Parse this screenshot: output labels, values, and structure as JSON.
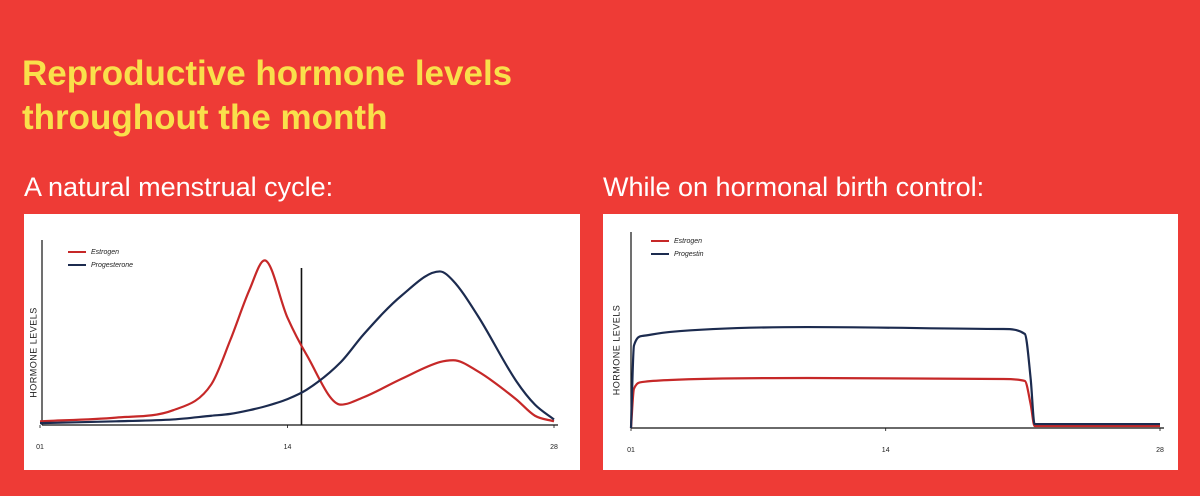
{
  "title": "Reproductive hormone levels throughout the month",
  "chart_data": [
    {
      "type": "line",
      "title": "A natural menstrual cycle:",
      "ylabel": "HORMONE LEVELS",
      "x": [
        1,
        5,
        8,
        10,
        11,
        12,
        12.8,
        14,
        15,
        16.8,
        18,
        20,
        22,
        22.7,
        24,
        26,
        27,
        28
      ],
      "series": [
        {
          "name": "Estrogen",
          "color": "#c62828",
          "values": [
            2,
            4,
            8,
            22,
            46,
            73,
            89,
            58,
            38,
            11,
            15,
            25,
            34,
            35,
            29,
            14,
            5,
            2
          ]
        },
        {
          "name": "Progesterone",
          "color": "#1c2b4f",
          "values": [
            1,
            2,
            3,
            5,
            6,
            8,
            10,
            14,
            19,
            34,
            49,
            70,
            83,
            78,
            59,
            24,
            11,
            3
          ]
        }
      ],
      "xlim": [
        1,
        28
      ],
      "xticks": [
        {
          "value": 1,
          "label": "01"
        },
        14,
        28
      ],
      "ylim": [
        0,
        100
      ],
      "vline": 14,
      "grid": false,
      "legend": "top-left"
    },
    {
      "type": "line",
      "title": "While on hormonal birth control:",
      "ylabel": "HORMONE LEVELS",
      "x": [
        1,
        1.15,
        1.6,
        3,
        10,
        20,
        21.1,
        21.4,
        21.6,
        28
      ],
      "series": [
        {
          "name": "Estrogen",
          "color": "#c62828",
          "values": [
            0,
            20,
            23.5,
            24.5,
            25.5,
            25,
            24,
            12,
            1,
            1
          ]
        },
        {
          "name": "Progestin",
          "color": "#1c2b4f",
          "values": [
            0,
            42,
            47,
            49,
            51.5,
            50.5,
            48,
            25,
            2,
            2
          ]
        }
      ],
      "xlim": [
        1,
        28
      ],
      "xticks": [
        {
          "value": 1,
          "label": "01"
        },
        14,
        28
      ],
      "ylim": [
        0,
        100
      ],
      "grid": false,
      "legend": "top-left"
    }
  ]
}
